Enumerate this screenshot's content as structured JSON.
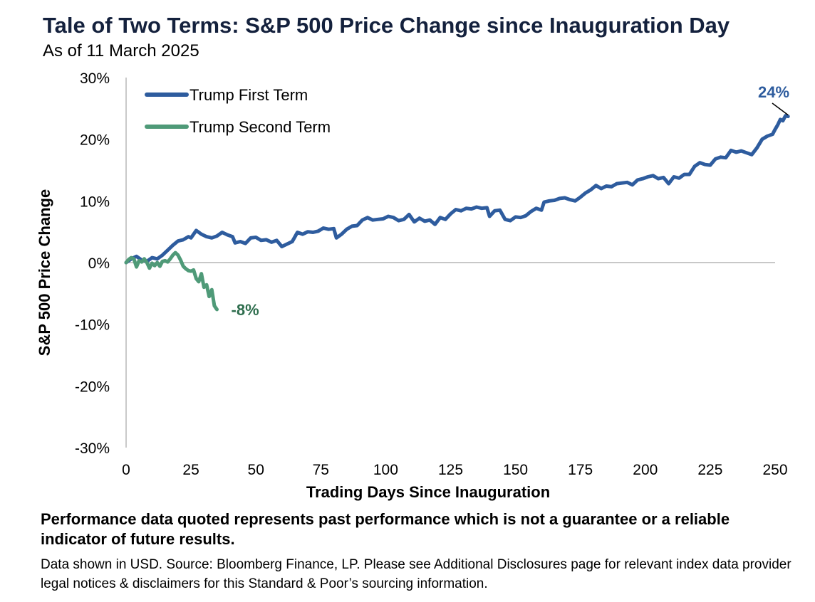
{
  "header": {
    "title": "Tale of Two Terms: S&P 500 Price Change since Inauguration Day",
    "subtitle": "As of 11 March 2025"
  },
  "footer": {
    "disclaimer": "Performance data quoted represents past performance which is not a guarantee or a reliable indicator of future results.",
    "source": "Data shown in USD. Source: Bloomberg Finance, LP. Please see Additional Disclosures page for relevant index data provider legal notices & disclaimers for this Standard & Poor’s sourcing information."
  },
  "colors": {
    "first_term": "#2e5c9e",
    "second_term": "#4f9a78",
    "second_term_label": "#2f6e4e",
    "axis": "#a6a6a6"
  },
  "chart_data": {
    "type": "line",
    "title": "Tale of Two Terms: S&P 500 Price Change since Inauguration Day",
    "subtitle": "As of 11 March 2025",
    "xlabel": "Trading Days Since Inauguration",
    "ylabel": "S&P 500 Price Change",
    "xlim": [
      0,
      250
    ],
    "ylim": [
      -30,
      30
    ],
    "x_ticks": [
      0,
      25,
      50,
      75,
      100,
      125,
      150,
      175,
      200,
      225,
      250
    ],
    "x_tick_labels": [
      "0",
      "25",
      "50",
      "75",
      "100",
      "125",
      "150",
      "175",
      "200",
      "225",
      "250"
    ],
    "y_ticks": [
      -30,
      -20,
      -10,
      0,
      10,
      20,
      30
    ],
    "y_tick_labels": [
      "-30%",
      "-20%",
      "-10%",
      "0%",
      "10%",
      "20%",
      "30%"
    ],
    "legend_position": "top-left",
    "series": [
      {
        "name": "Trump First Term",
        "color": "#2e5c9e",
        "end_label": "24%",
        "points": [
          [
            0,
            0
          ],
          [
            2,
            0.6
          ],
          [
            4,
            1.0
          ],
          [
            6,
            0.4
          ],
          [
            8,
            0.2
          ],
          [
            10,
            0.8
          ],
          [
            12,
            0.6
          ],
          [
            14,
            1.2
          ],
          [
            16,
            2.0
          ],
          [
            18,
            2.8
          ],
          [
            20,
            3.5
          ],
          [
            22,
            3.7
          ],
          [
            24,
            4.2
          ],
          [
            25,
            4.0
          ],
          [
            27,
            5.2
          ],
          [
            29,
            4.6
          ],
          [
            31,
            4.2
          ],
          [
            33,
            4.0
          ],
          [
            35,
            4.3
          ],
          [
            37,
            4.9
          ],
          [
            39,
            4.5
          ],
          [
            41,
            4.2
          ],
          [
            42,
            3.2
          ],
          [
            44,
            3.4
          ],
          [
            46,
            3.1
          ],
          [
            48,
            4.0
          ],
          [
            50,
            4.1
          ],
          [
            52,
            3.6
          ],
          [
            54,
            3.7
          ],
          [
            56,
            3.3
          ],
          [
            58,
            3.6
          ],
          [
            60,
            2.6
          ],
          [
            62,
            3.0
          ],
          [
            64,
            3.4
          ],
          [
            66,
            4.9
          ],
          [
            68,
            4.6
          ],
          [
            70,
            5.0
          ],
          [
            72,
            4.9
          ],
          [
            74,
            5.1
          ],
          [
            76,
            5.6
          ],
          [
            78,
            5.4
          ],
          [
            80,
            5.5
          ],
          [
            81,
            4.0
          ],
          [
            83,
            4.6
          ],
          [
            85,
            5.4
          ],
          [
            87,
            5.9
          ],
          [
            89,
            6.0
          ],
          [
            91,
            6.9
          ],
          [
            93,
            7.3
          ],
          [
            95,
            6.9
          ],
          [
            97,
            7.0
          ],
          [
            99,
            7.1
          ],
          [
            101,
            7.5
          ],
          [
            103,
            7.3
          ],
          [
            105,
            6.8
          ],
          [
            107,
            7.0
          ],
          [
            109,
            7.8
          ],
          [
            111,
            6.6
          ],
          [
            113,
            7.2
          ],
          [
            115,
            6.7
          ],
          [
            117,
            6.9
          ],
          [
            119,
            6.2
          ],
          [
            121,
            7.3
          ],
          [
            123,
            7.0
          ],
          [
            125,
            7.9
          ],
          [
            127,
            8.6
          ],
          [
            129,
            8.4
          ],
          [
            131,
            8.8
          ],
          [
            133,
            8.7
          ],
          [
            135,
            9.0
          ],
          [
            137,
            8.8
          ],
          [
            139,
            8.9
          ],
          [
            140,
            7.5
          ],
          [
            142,
            8.4
          ],
          [
            144,
            8.5
          ],
          [
            146,
            7.0
          ],
          [
            148,
            6.8
          ],
          [
            150,
            7.4
          ],
          [
            152,
            7.3
          ],
          [
            154,
            7.6
          ],
          [
            156,
            8.3
          ],
          [
            158,
            8.8
          ],
          [
            160,
            8.5
          ],
          [
            161,
            9.8
          ],
          [
            163,
            10.0
          ],
          [
            165,
            10.1
          ],
          [
            167,
            10.4
          ],
          [
            169,
            10.5
          ],
          [
            171,
            10.2
          ],
          [
            173,
            10.0
          ],
          [
            175,
            10.6
          ],
          [
            177,
            11.3
          ],
          [
            179,
            11.8
          ],
          [
            181,
            12.5
          ],
          [
            183,
            12.0
          ],
          [
            185,
            12.4
          ],
          [
            187,
            12.3
          ],
          [
            189,
            12.8
          ],
          [
            191,
            12.9
          ],
          [
            193,
            13.0
          ],
          [
            195,
            12.6
          ],
          [
            197,
            13.4
          ],
          [
            199,
            13.6
          ],
          [
            201,
            13.9
          ],
          [
            203,
            14.1
          ],
          [
            205,
            13.6
          ],
          [
            207,
            13.8
          ],
          [
            209,
            12.8
          ],
          [
            211,
            13.9
          ],
          [
            213,
            13.7
          ],
          [
            215,
            14.3
          ],
          [
            217,
            14.3
          ],
          [
            219,
            15.6
          ],
          [
            221,
            16.2
          ],
          [
            223,
            15.9
          ],
          [
            225,
            15.8
          ],
          [
            227,
            16.8
          ],
          [
            229,
            17.1
          ],
          [
            231,
            17.0
          ],
          [
            233,
            18.2
          ],
          [
            235,
            17.9
          ],
          [
            237,
            18.1
          ],
          [
            239,
            17.8
          ],
          [
            241,
            17.5
          ],
          [
            243,
            18.6
          ],
          [
            245,
            20.0
          ],
          [
            247,
            20.5
          ],
          [
            249,
            20.8
          ],
          [
            250,
            21.6
          ],
          [
            251,
            22.3
          ],
          [
            252,
            23.2
          ],
          [
            253,
            23.0
          ],
          [
            254,
            23.8
          ],
          [
            255,
            23.7
          ]
        ]
      },
      {
        "name": "Trump Second Term",
        "color": "#4f9a78",
        "end_label": "-8%",
        "points": [
          [
            0,
            0
          ],
          [
            1,
            0.5
          ],
          [
            2,
            0.8
          ],
          [
            3,
            0.6
          ],
          [
            4,
            -0.7
          ],
          [
            5,
            0.3
          ],
          [
            6,
            0.1
          ],
          [
            7,
            0.6
          ],
          [
            8,
            0.0
          ],
          [
            9,
            -0.9
          ],
          [
            10,
            -0.1
          ],
          [
            11,
            -0.5
          ],
          [
            12,
            0.0
          ],
          [
            13,
            -0.6
          ],
          [
            14,
            0.2
          ],
          [
            15,
            0.3
          ],
          [
            16,
            0.1
          ],
          [
            17,
            0.6
          ],
          [
            18,
            1.2
          ],
          [
            19,
            1.6
          ],
          [
            20,
            1.2
          ],
          [
            21,
            0.4
          ],
          [
            22,
            -0.6
          ],
          [
            23,
            -1.0
          ],
          [
            24,
            -1.3
          ],
          [
            25,
            -1.4
          ],
          [
            26,
            -1.2
          ],
          [
            27,
            -2.6
          ],
          [
            28,
            -3.1
          ],
          [
            29,
            -1.8
          ],
          [
            30,
            -4.0
          ],
          [
            31,
            -3.6
          ],
          [
            32,
            -5.5
          ],
          [
            33,
            -4.4
          ],
          [
            34,
            -7.0
          ],
          [
            35,
            -7.6
          ]
        ]
      }
    ]
  }
}
